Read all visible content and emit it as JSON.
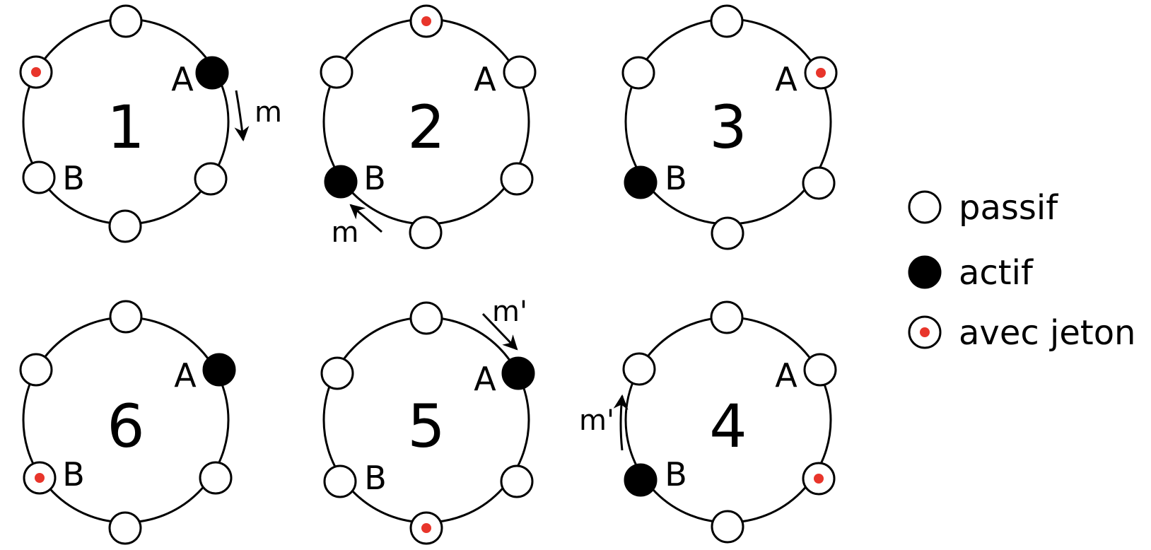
{
  "legend": {
    "passive": "passif",
    "active": "actif",
    "token": "avec jeton"
  },
  "steps": [
    {
      "label": "1",
      "label_a": "A",
      "label_b": "B",
      "message": "m",
      "nodes": [
        "passive",
        "active",
        "passive",
        "passive",
        "passive",
        "token"
      ]
    },
    {
      "label": "2",
      "label_a": "A",
      "label_b": "B",
      "message": "m",
      "nodes": [
        "token",
        "passive",
        "passive",
        "passive",
        "active",
        "passive"
      ]
    },
    {
      "label": "3",
      "label_a": "A",
      "label_b": "B",
      "message": "",
      "nodes": [
        "passive",
        "token",
        "passive",
        "passive",
        "active",
        "passive"
      ]
    },
    {
      "label": "4",
      "label_a": "A",
      "label_b": "B",
      "message": "m'",
      "nodes": [
        "passive",
        "passive",
        "token",
        "passive",
        "active",
        "passive"
      ]
    },
    {
      "label": "5",
      "label_a": "A",
      "label_b": "B",
      "message": "m'",
      "nodes": [
        "passive",
        "active",
        "passive",
        "token",
        "passive",
        "passive"
      ]
    },
    {
      "label": "6",
      "label_a": "A",
      "label_b": "B",
      "message": "",
      "nodes": [
        "passive",
        "active",
        "passive",
        "passive",
        "token",
        "passive"
      ]
    }
  ],
  "colors": {
    "token": "#e8352b",
    "active": "#000000",
    "passive": "#ffffff",
    "stroke": "#000000"
  }
}
